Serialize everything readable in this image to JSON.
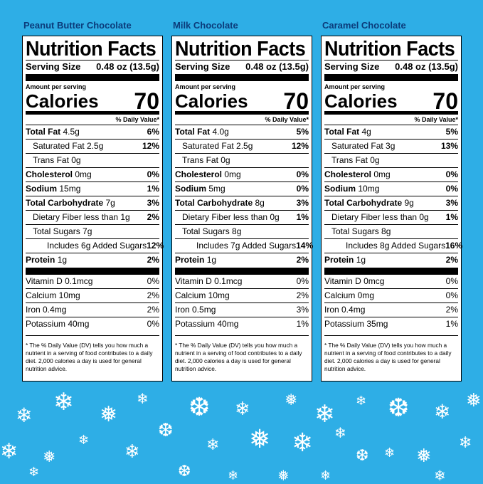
{
  "panels": [
    {
      "product": "Peanut Butter Chocolate",
      "title": "Nutrition Facts",
      "serving_label": "Serving Size",
      "serving_value": "0.48 oz (13.5g)",
      "amount_per_serving": "Amount per serving",
      "calories_label": "Calories",
      "calories_value": "70",
      "dv_header": "% Daily Value*",
      "nutrients": [
        {
          "name": "Total Fat",
          "amount": "4.5g",
          "dv": "6%"
        },
        {
          "name": "Saturated Fat 2.5g",
          "dv": "12%"
        },
        {
          "name": "Trans Fat 0g",
          "dv": ""
        },
        {
          "name": "Cholesterol",
          "amount": "0mg",
          "dv": "0%"
        },
        {
          "name": "Sodium",
          "amount": "15mg",
          "dv": "1%"
        },
        {
          "name": "Total Carbohydrate",
          "amount": "7g",
          "dv": "3%"
        },
        {
          "name": "Dietary Fiber less than 1g",
          "dv": "2%"
        },
        {
          "name": "Total Sugars 7g",
          "dv": ""
        },
        {
          "name": "Includes 6g Added Sugars",
          "dv": "12%"
        },
        {
          "name": "Protein",
          "amount": "1g",
          "dv": "2%"
        }
      ],
      "vitamins": [
        {
          "name": "Vitamin D 0.1mcg",
          "dv": "0%"
        },
        {
          "name": "Calcium 10mg",
          "dv": "2%"
        },
        {
          "name": "Iron 0.4mg",
          "dv": "2%"
        },
        {
          "name": "Potassium 40mg",
          "dv": "0%"
        }
      ],
      "footnote": "* The % Daily Value (DV) tells you how much a nutrient in a serving of food contributes to a daily diet. 2,000 calories a day is used for general nutrition advice."
    },
    {
      "product": "Milk Chocolate",
      "title": "Nutrition Facts",
      "serving_label": "Serving Size",
      "serving_value": "0.48 oz (13.5g)",
      "amount_per_serving": "Amount per serving",
      "calories_label": "Calories",
      "calories_value": "70",
      "dv_header": "% Daily Value*",
      "nutrients": [
        {
          "name": "Total Fat",
          "amount": "4.0g",
          "dv": "5%"
        },
        {
          "name": "Saturated Fat 2.5g",
          "dv": "12%"
        },
        {
          "name": "Trans Fat 0g",
          "dv": ""
        },
        {
          "name": "Cholesterol",
          "amount": "0mg",
          "dv": "0%"
        },
        {
          "name": "Sodium",
          "amount": "5mg",
          "dv": "0%"
        },
        {
          "name": "Total Carbohydrate",
          "amount": "8g",
          "dv": "3%"
        },
        {
          "name": "Dietary Fiber less than 0g",
          "dv": "1%"
        },
        {
          "name": "Total Sugars 8g",
          "dv": ""
        },
        {
          "name": "Includes 7g Added Sugars",
          "dv": "14%"
        },
        {
          "name": "Protein",
          "amount": "1g",
          "dv": "2%"
        }
      ],
      "vitamins": [
        {
          "name": "Vitamin D 0.1mcg",
          "dv": "0%"
        },
        {
          "name": "Calcium 10mg",
          "dv": "2%"
        },
        {
          "name": "Iron 0.5mg",
          "dv": "3%"
        },
        {
          "name": "Potassium 40mg",
          "dv": "1%"
        }
      ],
      "footnote": "* The % Daily Value (DV) tells you how much a nutrient in a serving of food contributes to a daily diet. 2,000 calories a day is used for general nutrition advice."
    },
    {
      "product": "Caramel Chocolate",
      "title": "Nutrition Facts",
      "serving_label": "Serving Size",
      "serving_value": "0.48 oz (13.5g)",
      "amount_per_serving": "Amount per serving",
      "calories_label": "Calories",
      "calories_value": "70",
      "dv_header": "% Daily Value*",
      "nutrients": [
        {
          "name": "Total Fat",
          "amount": "4g",
          "dv": "5%"
        },
        {
          "name": "Saturated Fat 3g",
          "dv": "13%"
        },
        {
          "name": "Trans Fat 0g",
          "dv": ""
        },
        {
          "name": "Cholesterol",
          "amount": "0mg",
          "dv": "0%"
        },
        {
          "name": "Sodium",
          "amount": "10mg",
          "dv": "0%"
        },
        {
          "name": "Total Carbohydrate",
          "amount": "9g",
          "dv": "3%"
        },
        {
          "name": "Dietary Fiber less than 0g",
          "dv": "1%"
        },
        {
          "name": "Total Sugars 8g",
          "dv": ""
        },
        {
          "name": "Includes 8g Added Sugars",
          "dv": "16%"
        },
        {
          "name": "Protein",
          "amount": "1g",
          "dv": "2%"
        }
      ],
      "vitamins": [
        {
          "name": "Vitamin D 0mcg",
          "dv": "0%"
        },
        {
          "name": "Calcium 0mg",
          "dv": "0%"
        },
        {
          "name": "Iron 0.4mg",
          "dv": "2%"
        },
        {
          "name": "Potassium 35mg",
          "dv": "1%"
        }
      ],
      "footnote": "* The % Daily Value (DV) tells you how much a nutrient in a serving of food contributes to a daily diet. 2,000 calories a day is used for general nutrition advice."
    }
  ],
  "colors": {
    "background": "#2eaee6",
    "title": "#0b3b7a",
    "snow": "#ffffff"
  },
  "decoration": {
    "icon": "snowflake-icon"
  }
}
